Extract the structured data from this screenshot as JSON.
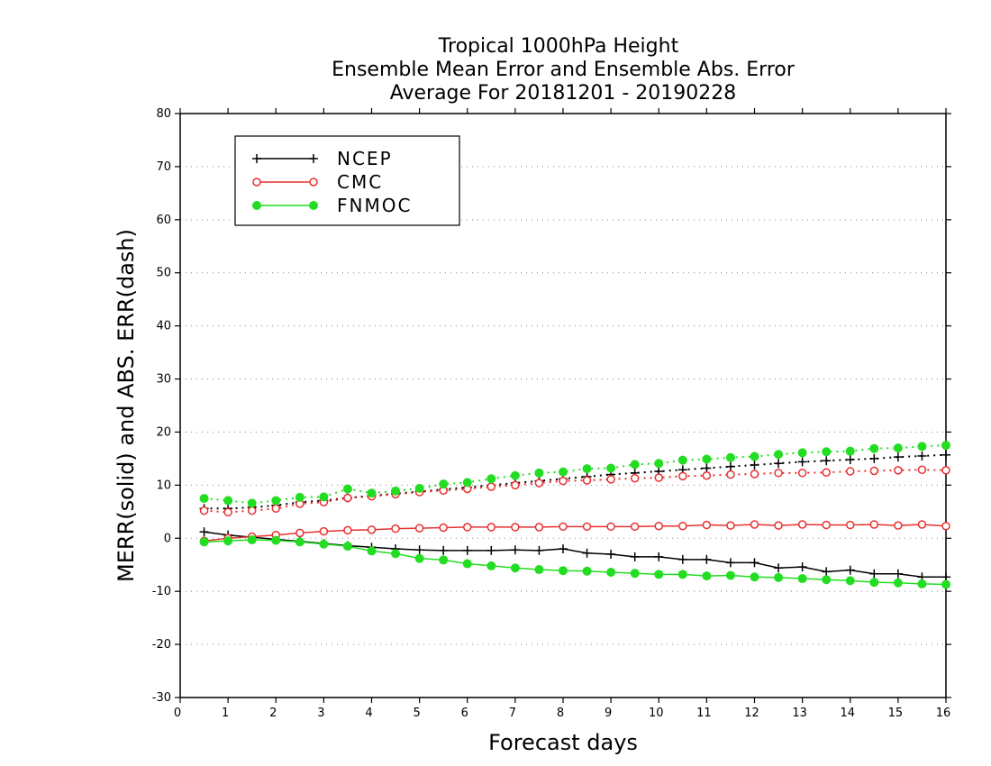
{
  "chart_data": {
    "type": "line",
    "title": [
      "Tropical 1000hPa Height",
      "Ensemble Mean Error and Ensemble Abs. Error",
      "Average For 20181201 - 20190228"
    ],
    "xlabel": "Forecast days",
    "ylabel": "MERR(solid) and ABS. ERR(dash)",
    "xlim": [
      0,
      16
    ],
    "ylim": [
      -30,
      80
    ],
    "xticks": [
      0,
      1,
      2,
      3,
      4,
      5,
      6,
      7,
      8,
      9,
      10,
      11,
      12,
      13,
      14,
      15,
      16
    ],
    "yticks": [
      -30,
      -20,
      -10,
      0,
      10,
      20,
      30,
      40,
      50,
      60,
      70,
      80
    ],
    "grid": true,
    "legend_position": "top-left",
    "x": [
      0.5,
      1,
      1.5,
      2,
      2.5,
      3,
      3.5,
      4,
      4.5,
      5,
      5.5,
      6,
      6.5,
      7,
      7.5,
      8,
      8.5,
      9,
      9.5,
      10,
      10.5,
      11,
      11.5,
      12,
      12.5,
      13,
      13.5,
      14,
      14.5,
      15,
      15.5,
      16
    ],
    "series": [
      {
        "name": "NCEP",
        "marker": "plus",
        "color": "#000000",
        "merr": [
          1.2,
          0.6,
          0.2,
          -0.2,
          -0.6,
          -1.0,
          -1.4,
          -1.7,
          -2.0,
          -2.2,
          -2.3,
          -2.3,
          -2.3,
          -2.2,
          -2.3,
          -2.0,
          -2.8,
          -3.0,
          -3.5,
          -3.5,
          -4.0,
          -4.0,
          -4.6,
          -4.6,
          -5.6,
          -5.4,
          -6.3,
          -6.0,
          -6.7,
          -6.7,
          -7.3,
          -7.3
        ],
        "abs_err": [
          5.6,
          5.6,
          5.8,
          6.2,
          6.8,
          7.1,
          7.6,
          8.0,
          8.4,
          8.8,
          9.2,
          9.6,
          10.0,
          10.4,
          10.8,
          11.2,
          11.6,
          12.0,
          12.3,
          12.6,
          12.9,
          13.2,
          13.5,
          13.8,
          14.1,
          14.4,
          14.6,
          14.8,
          15.0,
          15.3,
          15.5,
          15.7
        ]
      },
      {
        "name": "CMC",
        "marker": "open-circle",
        "color": "#e83030",
        "merr": [
          -0.5,
          0.0,
          0.3,
          0.6,
          1.0,
          1.3,
          1.5,
          1.6,
          1.8,
          1.9,
          2.0,
          2.1,
          2.1,
          2.1,
          2.1,
          2.2,
          2.2,
          2.2,
          2.2,
          2.3,
          2.3,
          2.5,
          2.4,
          2.6,
          2.4,
          2.6,
          2.5,
          2.5,
          2.6,
          2.4,
          2.6,
          2.3
        ],
        "abs_err": [
          5.2,
          4.9,
          5.2,
          5.6,
          6.5,
          6.8,
          7.6,
          7.9,
          8.3,
          8.7,
          9.0,
          9.3,
          9.7,
          10.0,
          10.4,
          10.8,
          10.9,
          11.1,
          11.3,
          11.4,
          11.7,
          11.8,
          12.0,
          12.1,
          12.3,
          12.3,
          12.4,
          12.6,
          12.7,
          12.8,
          12.9,
          12.8
        ]
      },
      {
        "name": "FNMOC",
        "marker": "filled-circle",
        "color": "#22dd22",
        "merr": [
          -0.7,
          -0.5,
          -0.3,
          -0.4,
          -0.7,
          -1.1,
          -1.5,
          -2.4,
          -2.9,
          -3.8,
          -4.1,
          -4.8,
          -5.2,
          -5.6,
          -5.9,
          -6.1,
          -6.2,
          -6.4,
          -6.6,
          -6.8,
          -6.8,
          -7.1,
          -7.0,
          -7.3,
          -7.4,
          -7.6,
          -7.8,
          -8.0,
          -8.3,
          -8.4,
          -8.6,
          -8.7
        ],
        "abs_err": [
          7.5,
          7.1,
          6.6,
          7.1,
          7.7,
          7.8,
          9.3,
          8.5,
          8.9,
          9.4,
          10.2,
          10.5,
          11.2,
          11.8,
          12.3,
          12.5,
          13.1,
          13.2,
          13.9,
          14.1,
          14.7,
          14.9,
          15.2,
          15.4,
          15.8,
          16.1,
          16.3,
          16.4,
          16.9,
          17.0,
          17.3,
          17.5
        ]
      }
    ]
  }
}
